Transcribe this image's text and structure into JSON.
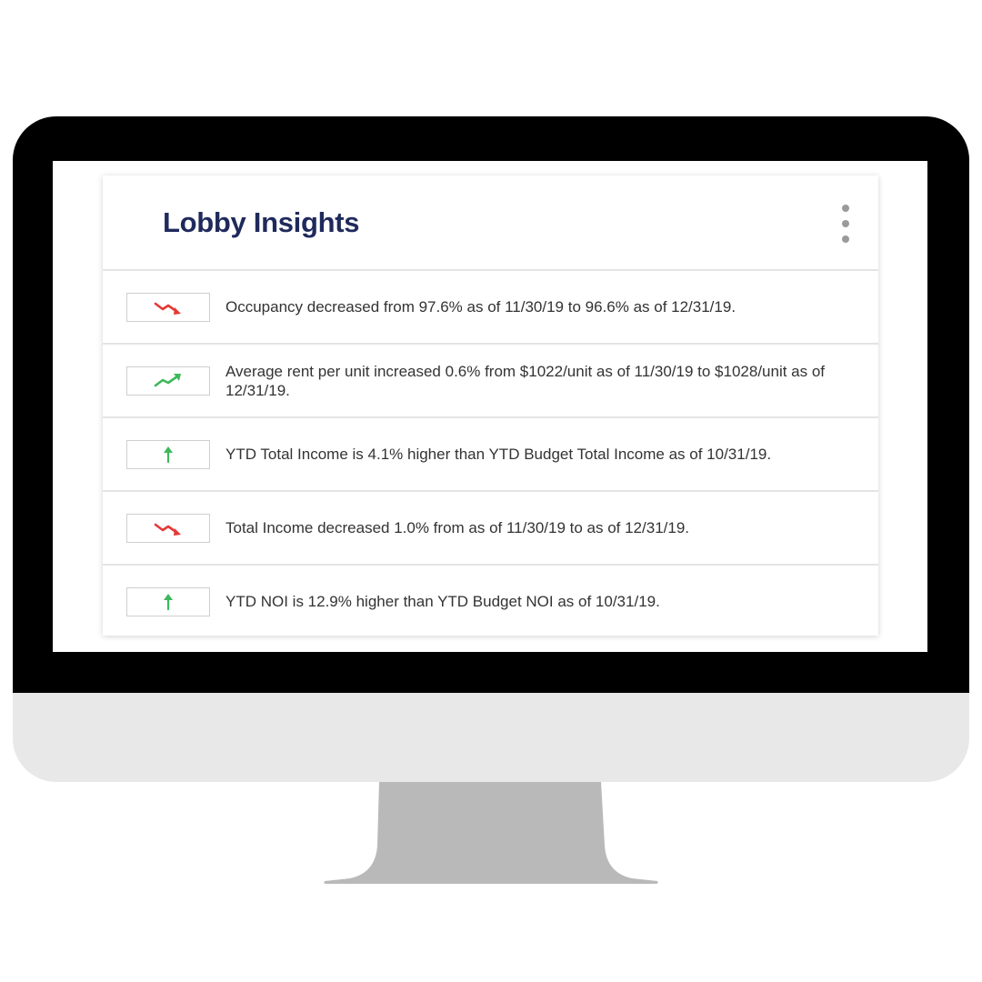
{
  "card": {
    "title": "Lobby Insights"
  },
  "colors": {
    "down": "#e53935",
    "up": "#3cb95a",
    "title": "#1f2a5c"
  },
  "insights": [
    {
      "trend": "down",
      "icon": "trend-down-icon",
      "text": "Occupancy decreased from 97.6% as of 11/30/19 to 96.6% as of 12/31/19."
    },
    {
      "trend": "up",
      "icon": "trend-up-icon",
      "text": "Average rent per unit increased 0.6% from $1022/unit as of 11/30/19 to $1028/unit as of 12/31/19."
    },
    {
      "trend": "up",
      "icon": "arrow-up-icon",
      "text": "YTD Total Income is 4.1% higher than YTD Budget Total Income as of 10/31/19."
    },
    {
      "trend": "down",
      "icon": "trend-down-icon",
      "text": "Total Income decreased 1.0% from as of 11/30/19 to as of 12/31/19."
    },
    {
      "trend": "up",
      "icon": "arrow-up-icon",
      "text": "YTD NOI is 12.9% higher than YTD Budget NOI as of 10/31/19."
    }
  ]
}
